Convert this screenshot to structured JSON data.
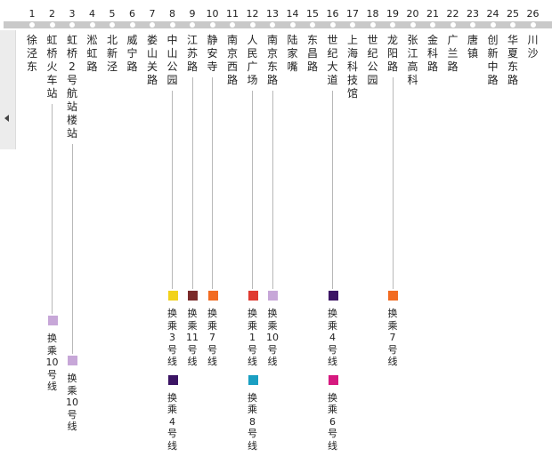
{
  "station_numbers": [
    "1",
    "2",
    "3",
    "4",
    "5",
    "6",
    "7",
    "8",
    "9",
    "10",
    "11",
    "12",
    "13",
    "14",
    "15",
    "16",
    "17",
    "18",
    "19",
    "20",
    "21",
    "22",
    "23",
    "24",
    "25",
    "26"
  ],
  "stations": [
    "徐泾东",
    "虹桥火车站",
    "虹桥2号航站楼站",
    "淞虹路",
    "北新泾",
    "威宁路",
    "娄山关路",
    "中山公园",
    "江苏路",
    "静安寺",
    "南京西路",
    "人民广场",
    "南京东路",
    "陆家嘴",
    "东昌路",
    "世纪大道",
    "上海科技馆",
    "世纪公园",
    "龙阳路",
    "张江高科",
    "金科路",
    "广兰路",
    "唐镇",
    "创新中路",
    "华夏东路",
    "川沙"
  ],
  "transfers": [
    {
      "station": 2,
      "line_color": "#c7a7d8",
      "label": "换乘10号线"
    },
    {
      "station": 3,
      "line_color": "#c7a7d8",
      "label": "换乘10号线"
    },
    {
      "station": 8,
      "line_color": "#f2d21b",
      "label": "换乘3号线"
    },
    {
      "station": 8,
      "line_color": "#3b1464",
      "label": "换乘4号线"
    },
    {
      "station": 9,
      "line_color": "#7a2a2a",
      "label": "换乘11号线"
    },
    {
      "station": 10,
      "line_color": "#f26b21",
      "label": "换乘7号线"
    },
    {
      "station": 12,
      "line_color": "#e03a30",
      "label": "换乘1号线"
    },
    {
      "station": 12,
      "line_color": "#1a9fc2",
      "label": "换乘8号线"
    },
    {
      "station": 13,
      "line_color": "#c7a7d8",
      "label": "换乘10号线"
    },
    {
      "station": 16,
      "line_color": "#3b1464",
      "label": "换乘4号线"
    },
    {
      "station": 16,
      "line_color": "#d6197f",
      "label": "换乘6号线"
    },
    {
      "station": 19,
      "line_color": "#f26b21",
      "label": "换乘7号线"
    }
  ]
}
